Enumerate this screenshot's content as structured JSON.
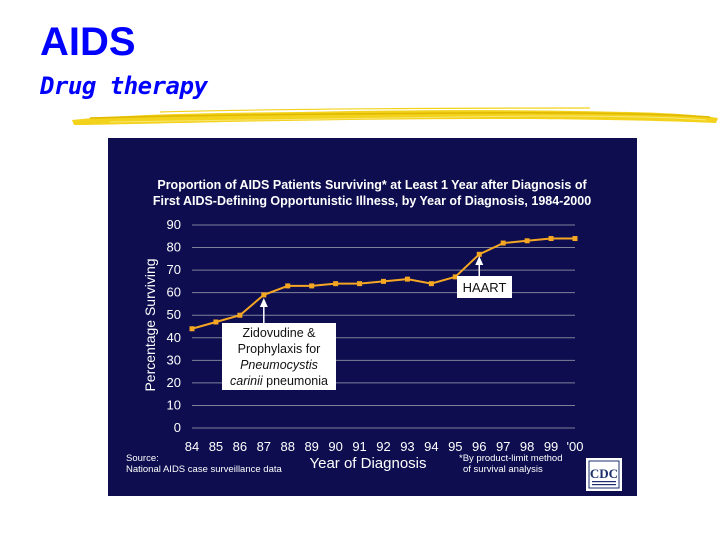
{
  "slide": {
    "title": "AIDS",
    "subtitle": "Drug therapy"
  },
  "colors": {
    "title": "#0000ff",
    "brush": "#f2d21a",
    "panel": "#0d0d4f",
    "line": "#f5a623",
    "text": "#ffffff",
    "grid": "#7f8199",
    "callout_bg": "#ffffff",
    "callout_text": "#111111"
  },
  "chart_data": {
    "type": "line",
    "title_line1": "Proportion of AIDS Patients Surviving* at Least 1 Year after Diagnosis of",
    "title_line2": "First AIDS-Defining Opportunistic Illness, by Year of Diagnosis, 1984-2000",
    "xlabel": "Year of Diagnosis",
    "ylabel": "Percentage Surviving",
    "categories": [
      "84",
      "85",
      "86",
      "87",
      "88",
      "89",
      "90",
      "91",
      "92",
      "93",
      "94",
      "95",
      "96",
      "97",
      "98",
      "99",
      "'00"
    ],
    "yticks": [
      "0",
      "10",
      "20",
      "30",
      "40",
      "50",
      "60",
      "70",
      "80",
      "90"
    ],
    "ylim": [
      0,
      90
    ],
    "grid": true,
    "series": [
      {
        "values": [
          44,
          47,
          50,
          59,
          63,
          63,
          64,
          64,
          65,
          66,
          64,
          67,
          77,
          82,
          83,
          84,
          84
        ]
      }
    ],
    "annotations": {
      "haart": "HAART",
      "zido_lines": [
        "Zidovudine &",
        "Prophylaxis for"
      ],
      "zido_italic_1": "Pneumocystis",
      "zido_italic_2": "carinii",
      "zido_rest_2": " pneumonia"
    },
    "source_lines": [
      "Source:",
      "National AIDS case surveillance data"
    ],
    "footnote_lines": [
      "*By product-limit method",
      "of survival analysis"
    ],
    "logo_text": "CDC"
  }
}
